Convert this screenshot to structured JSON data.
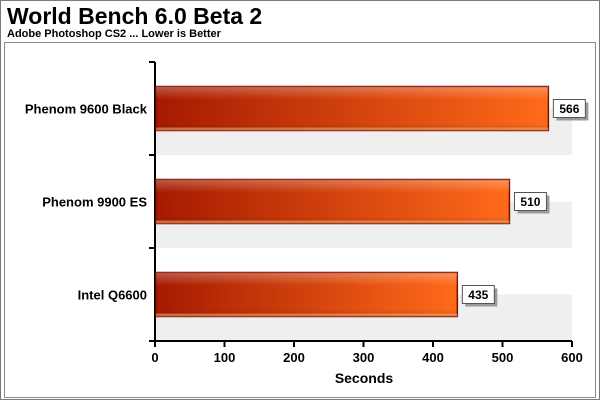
{
  "chart_data": {
    "type": "bar",
    "orientation": "horizontal",
    "title": "World Bench 6.0 Beta 2",
    "subtitle": "Adobe Photoshop CS2 ... Lower is Better",
    "categories": [
      "Phenom 9600 Black",
      "Phenom 9900 ES",
      "Intel Q6600"
    ],
    "values": [
      566,
      510,
      435
    ],
    "xlabel": "Seconds",
    "ylabel": "",
    "xlim": [
      0,
      600
    ],
    "xticks": [
      0,
      100,
      200,
      300,
      400,
      500,
      600
    ],
    "grid": "alternating-bands",
    "legend": "none",
    "colors": {
      "bar_dark": "#a51a00",
      "bar_light": "#ff6a1a",
      "bar_border": "#7a0f00",
      "band": "#efefef"
    }
  }
}
